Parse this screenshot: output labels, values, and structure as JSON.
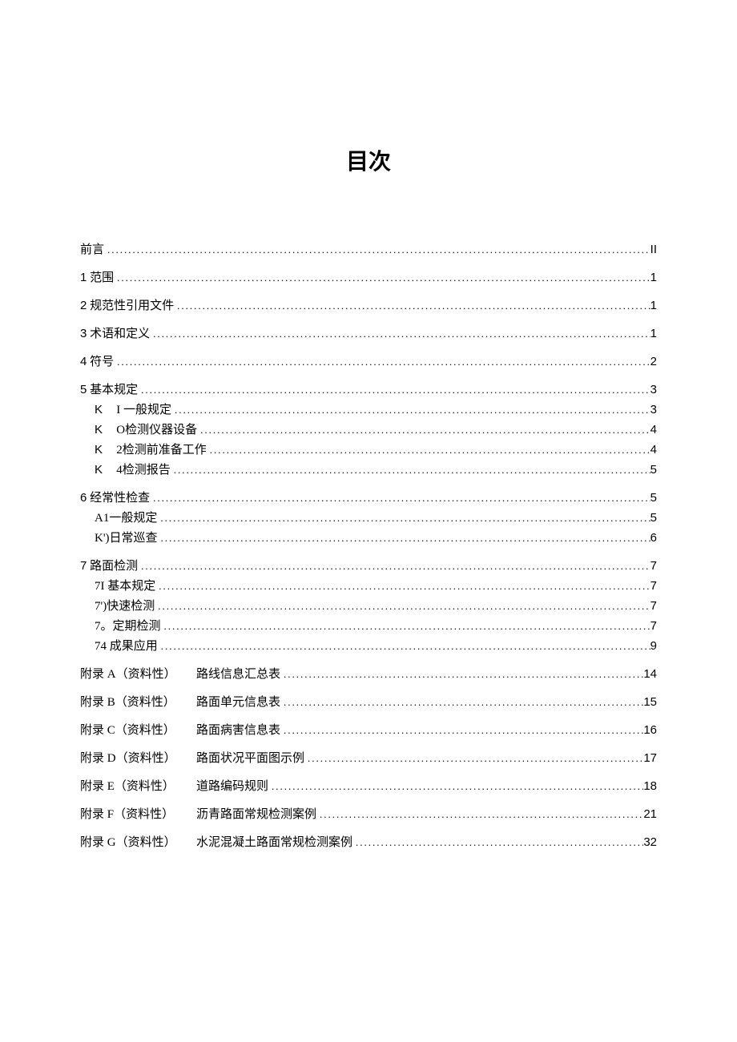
{
  "title": "目次",
  "entries": [
    {
      "type": "top",
      "label": "前言",
      "page": "II"
    },
    {
      "type": "top",
      "prefix": "1",
      "label": "范围",
      "page": "1"
    },
    {
      "type": "top",
      "prefix": "2",
      "label": "规范性引用文件",
      "page": "1"
    },
    {
      "type": "top",
      "prefix": "3",
      "label": "术语和定义",
      "page": "1"
    },
    {
      "type": "top",
      "prefix": "4",
      "label": "符号",
      "page": "2"
    },
    {
      "type": "top",
      "prefix": "5",
      "label": "基本规定",
      "page": "3",
      "children": [
        {
          "prefix": "K",
          "sub": "I 一般规定",
          "page": "3"
        },
        {
          "prefix": "K",
          "sub": "O检测仪器设备",
          "page": "4"
        },
        {
          "prefix": "K",
          "sub": "2检测前准备工作",
          "page": "4"
        },
        {
          "prefix": "K",
          "sub": "4检测报告",
          "page": "5"
        }
      ]
    },
    {
      "type": "top",
      "prefix": "6",
      "label": "经常性检查",
      "page": "5",
      "children": [
        {
          "prefix": "",
          "sub": "A1一般规定",
          "page": "5"
        },
        {
          "prefix": "",
          "sub": "K')日常巡查",
          "page": "6"
        }
      ]
    },
    {
      "type": "top",
      "prefix": "7",
      "label": "路面检测",
      "page": "7",
      "children": [
        {
          "prefix": "",
          "sub": "7I 基本规定",
          "page": "7"
        },
        {
          "prefix": "",
          "sub": "7')快速检测",
          "page": "7"
        },
        {
          "prefix": "",
          "sub": "7。定期检测",
          "page": "7"
        },
        {
          "prefix": "",
          "sub": "74 成果应用",
          "page": "9"
        }
      ]
    },
    {
      "type": "appendix",
      "label": "附录 A（资料性）",
      "title": "路线信息汇总表",
      "page": "14"
    },
    {
      "type": "appendix",
      "label": "附录 B（资料性）",
      "title": "路面单元信息表",
      "page": "15"
    },
    {
      "type": "appendix",
      "label": "附录 C（资料性）",
      "title": "路面病害信息表",
      "page": "16"
    },
    {
      "type": "appendix",
      "label": "附录 D（资料性）",
      "title": "路面状况平面图示例",
      "page": "17"
    },
    {
      "type": "appendix",
      "label": "附录 E（资料性）",
      "title": "道路编码规则",
      "page": "18"
    },
    {
      "type": "appendix",
      "label": "附录 F（资料性）",
      "title": "沥青路面常规检测案例",
      "page": "21"
    },
    {
      "type": "appendix",
      "label": "附录 G（资料性）",
      "title": "水泥混凝土路面常规检测案例",
      "page": "32"
    }
  ]
}
